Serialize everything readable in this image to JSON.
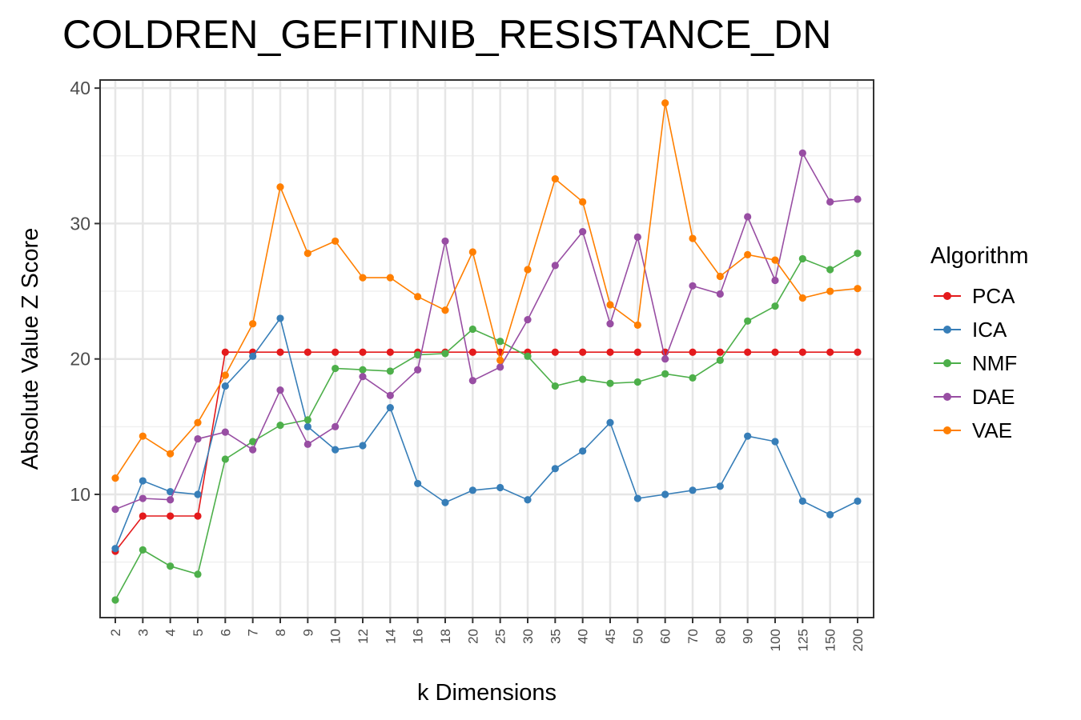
{
  "chart_data": {
    "type": "line",
    "title": "COLDREN_GEFITINIB_RESISTANCE_DN",
    "xlabel": "k Dimensions",
    "ylabel": "Absolute Value Z Score",
    "categories": [
      "2",
      "3",
      "4",
      "5",
      "6",
      "7",
      "8",
      "9",
      "10",
      "12",
      "14",
      "16",
      "18",
      "20",
      "25",
      "30",
      "35",
      "40",
      "45",
      "50",
      "60",
      "70",
      "80",
      "90",
      "100",
      "125",
      "150",
      "200"
    ],
    "y_ticks": [
      10,
      20,
      30,
      40
    ],
    "ylim": [
      0.9,
      40.6
    ],
    "grid": true,
    "legend": {
      "title": "Algorithm",
      "position": "right"
    },
    "series": [
      {
        "name": "PCA",
        "color": "#E41A1C",
        "values": [
          5.8,
          8.4,
          8.4,
          8.4,
          20.5,
          20.5,
          20.5,
          20.5,
          20.5,
          20.5,
          20.5,
          20.5,
          20.5,
          20.5,
          20.5,
          20.5,
          20.5,
          20.5,
          20.5,
          20.5,
          20.5,
          20.5,
          20.5,
          20.5,
          20.5,
          20.5,
          20.5,
          20.5
        ]
      },
      {
        "name": "ICA",
        "color": "#377EB8",
        "values": [
          6.0,
          11.0,
          10.2,
          10.0,
          18.0,
          20.2,
          23.0,
          15.0,
          13.3,
          13.6,
          16.4,
          10.8,
          9.4,
          10.3,
          10.5,
          9.6,
          11.9,
          13.2,
          15.3,
          9.7,
          10.0,
          10.3,
          10.6,
          14.3,
          13.9,
          9.5,
          8.5,
          9.5
        ]
      },
      {
        "name": "NMF",
        "color": "#4DAF4A",
        "values": [
          2.2,
          5.9,
          4.7,
          4.1,
          12.6,
          13.9,
          15.1,
          15.5,
          19.3,
          19.2,
          19.1,
          20.3,
          20.4,
          22.2,
          21.3,
          20.2,
          18.0,
          18.5,
          18.2,
          18.3,
          18.9,
          18.6,
          19.9,
          22.8,
          23.9,
          27.4,
          26.6,
          27.8
        ]
      },
      {
        "name": "DAE",
        "color": "#984EA3",
        "values": [
          8.9,
          9.7,
          9.6,
          14.1,
          14.6,
          13.3,
          17.7,
          13.7,
          15.0,
          18.7,
          17.3,
          19.2,
          28.7,
          18.4,
          19.4,
          22.9,
          26.9,
          29.4,
          22.6,
          29.0,
          20.0,
          25.4,
          24.8,
          30.5,
          25.8,
          35.2,
          31.6,
          31.8
        ]
      },
      {
        "name": "VAE",
        "color": "#FF7F00",
        "values": [
          11.2,
          14.3,
          13.0,
          15.3,
          18.8,
          22.6,
          32.7,
          27.8,
          28.7,
          26.0,
          26.0,
          24.6,
          23.6,
          27.9,
          19.9,
          26.6,
          33.3,
          31.6,
          24.0,
          22.5,
          38.9,
          28.9,
          26.1,
          27.7,
          27.3,
          24.5,
          25.0,
          25.2
        ]
      }
    ]
  }
}
